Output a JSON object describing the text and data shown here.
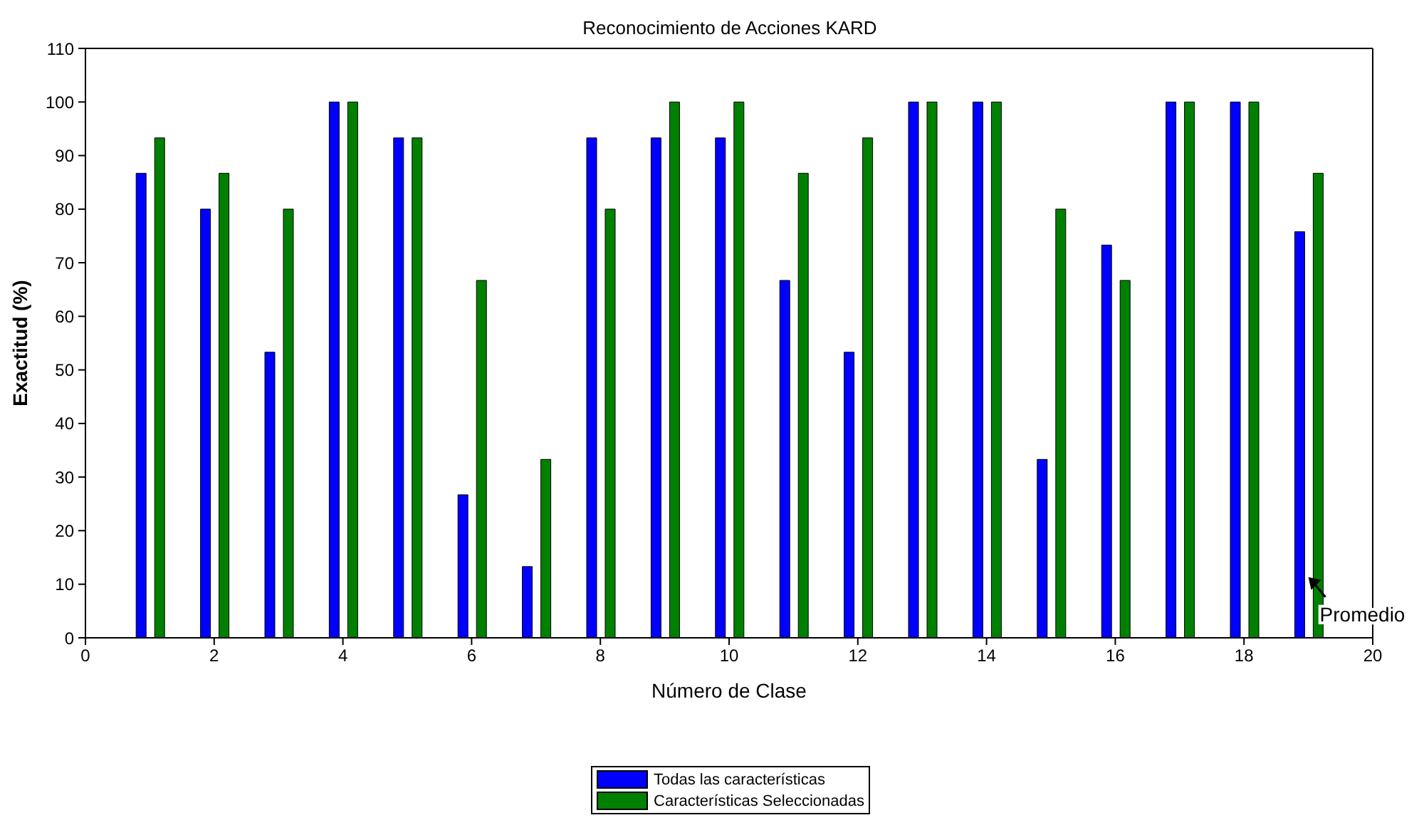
{
  "chart_data": {
    "type": "bar",
    "title": "Reconocimiento de Acciones KARD",
    "xlabel": "Número de Clase",
    "ylabel": "Exactitud (%)",
    "x": [
      1,
      2,
      3,
      4,
      5,
      6,
      7,
      8,
      9,
      10,
      11,
      12,
      13,
      14,
      15,
      16,
      17,
      18,
      19
    ],
    "series": [
      {
        "name": "Todas las características",
        "color": "#0000ff",
        "values": [
          86.7,
          80,
          53.3,
          100,
          93.3,
          26.7,
          13.3,
          93.3,
          93.3,
          93.3,
          66.7,
          53.3,
          100,
          100,
          33.3,
          73.3,
          100,
          100,
          75.8
        ]
      },
      {
        "name": "Características Seleccionadas",
        "color": "#008000",
        "values": [
          93.3,
          86.7,
          80,
          100,
          93.3,
          66.7,
          33.3,
          80,
          100,
          100,
          86.7,
          93.3,
          100,
          100,
          80,
          66.7,
          100,
          100,
          86.7
        ]
      }
    ],
    "xlim": [
      0,
      20
    ],
    "xticks": [
      0,
      2,
      4,
      6,
      8,
      10,
      12,
      14,
      16,
      18,
      20
    ],
    "ylim": [
      0,
      110
    ],
    "yticks": [
      0,
      10,
      20,
      30,
      40,
      50,
      60,
      70,
      80,
      90,
      100,
      110
    ],
    "annotations": [
      {
        "text": "Promedio",
        "x": 19,
        "y": 10
      }
    ],
    "legend": "bottom",
    "grid": false
  }
}
